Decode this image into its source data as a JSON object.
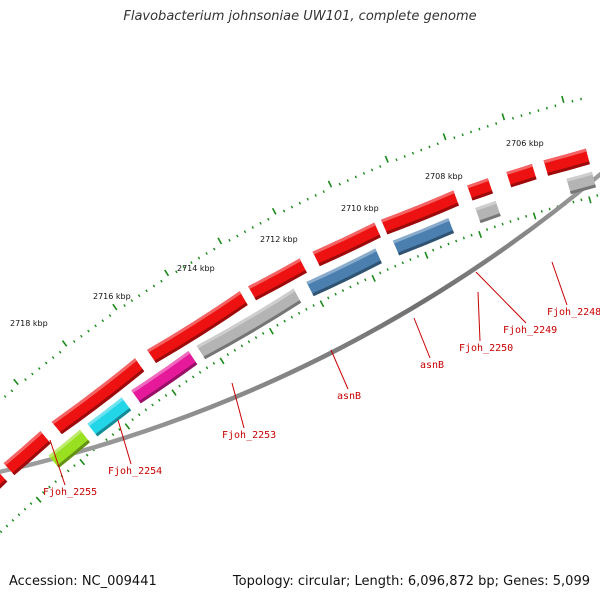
{
  "title": "Flavobacterium johnsoniae UW101, complete genome",
  "accession": "Accession: NC_009441",
  "summary": "Topology: circular; Length: 6,096,872 bp; Genes: 5,099",
  "colors": {
    "backbone": "#808080",
    "tick": "#1a8a1a",
    "cds": "#ee1111",
    "label": "#c80000"
  },
  "scale_labels": [
    "2706 kbp",
    "2708 kbp",
    "2710 kbp",
    "2712 kbp",
    "2714 kbp",
    "2716 kbp",
    "2718 kbp"
  ],
  "gene_labels": [
    "Fjoh_2248",
    "Fjoh_2249",
    "Fjoh_2250",
    "asnB",
    "asnB",
    "Fjoh_2253",
    "Fjoh_2254",
    "Fjoh_2255"
  ],
  "forward_features": [
    {
      "color": "#ee1111"
    },
    {
      "color": "#ee1111"
    },
    {
      "color": "#ee1111"
    },
    {
      "color": "#ee1111"
    },
    {
      "color": "#ee1111"
    },
    {
      "color": "#ee1111"
    },
    {
      "color": "#ee1111"
    },
    {
      "color": "#ee1111"
    },
    {
      "color": "#ee1111"
    },
    {
      "color": "#ee1111"
    }
  ],
  "reverse_features": [
    {
      "color": "#b4b4b4"
    },
    {
      "color": "#b4b4b4"
    },
    {
      "color": "#4a7fb0"
    },
    {
      "color": "#4a7fb0"
    },
    {
      "color": "#b4b4b4"
    },
    {
      "color": "#e6199b"
    },
    {
      "color": "#22d6e8"
    },
    {
      "color": "#99e020"
    }
  ]
}
